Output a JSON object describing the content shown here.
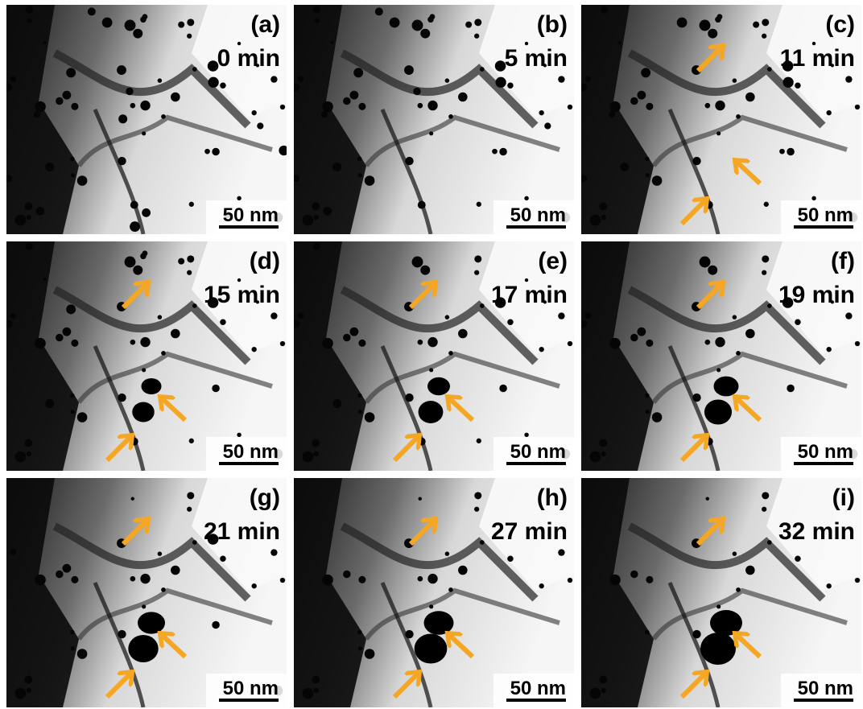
{
  "panels": [
    {
      "label": "(a)",
      "time": "0 min",
      "scale_bar": "50 nm"
    },
    {
      "label": "(b)",
      "time": "5 min",
      "scale_bar": "50 nm"
    },
    {
      "label": "(c)",
      "time": "11 min",
      "scale_bar": "50 nm"
    },
    {
      "label": "(d)",
      "time": "15 min",
      "scale_bar": "50 nm"
    },
    {
      "label": "(e)",
      "time": "17 min",
      "scale_bar": "50 nm"
    },
    {
      "label": "(f)",
      "time": "19 min",
      "scale_bar": "50 nm"
    },
    {
      "label": "(g)",
      "time": "21 min",
      "scale_bar": "50 nm"
    },
    {
      "label": "(h)",
      "time": "27 min",
      "scale_bar": "50 nm"
    },
    {
      "label": "(i)",
      "time": "32 min",
      "scale_bar": "50 nm"
    }
  ]
}
